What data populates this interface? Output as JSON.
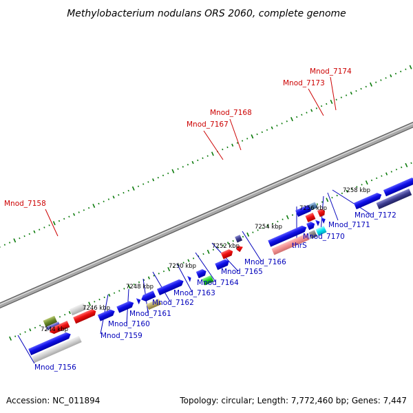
{
  "title": "Methylobacterium nodulans ORS 2060, complete genome",
  "footer": {
    "accession": "Accession: NC_011894",
    "summary": "Topology: circular; Length: 7,772,460 bp; Genes: 7,447"
  },
  "ticks": [
    "7244 kbp",
    "7246 kbp",
    "7248 kbp",
    "7250 kbp",
    "7252 kbp",
    "7254 kbp",
    "7256 kbp",
    "7258 kbp"
  ],
  "colors": {
    "forward_label": "#cc0000",
    "reverse_label": "#0000bb",
    "blue_gene": "#1414e0",
    "red_gene": "#ee1111",
    "gray_gene": "#c8c8c8",
    "backbone": "#888888",
    "tick": "#0a7a0a"
  },
  "labels": {
    "top": [
      "Mnod_7158",
      "Mnod_7167",
      "Mnod_7168",
      "Mnod_7173",
      "Mnod_7174"
    ],
    "bottom": [
      "Mnod_7156",
      "Mnod_7159",
      "Mnod_7160",
      "Mnod_7161",
      "Mnod_7162",
      "Mnod_7163",
      "Mnod_7164",
      "Mnod_7165",
      "Mnod_7166",
      "thrS",
      "Mnod_7170",
      "Mnod_7171",
      "Mnod_7172"
    ]
  }
}
